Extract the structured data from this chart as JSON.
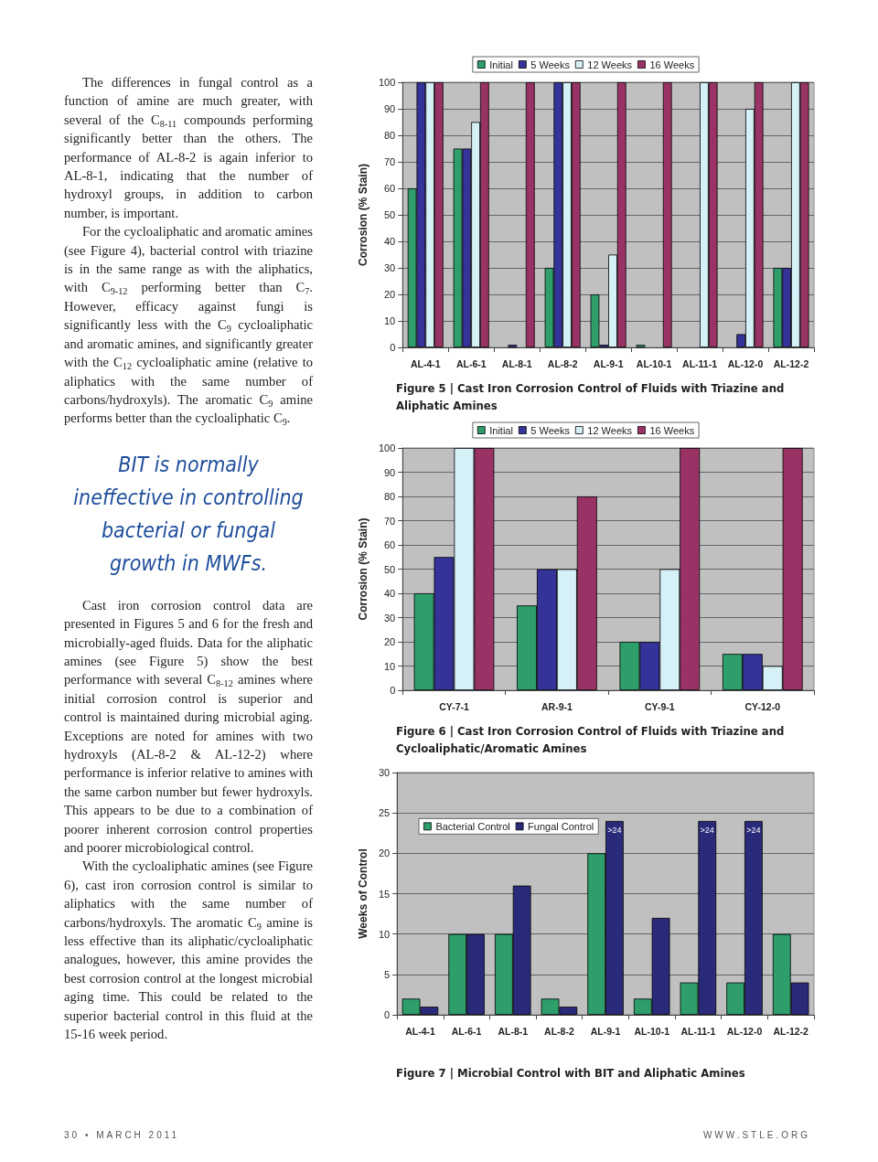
{
  "chart_data": [
    {
      "type": "other",
      "annotations": [
        "The differences in fungal control as a function of amine are much greater, with several of the C$_{8-11}$ compounds performing significantly better than the others. The performance of AL-8-2 is again inferior to AL-8-1, indicating that the number of hydroxyl groups, in addition to carbon number, is important.",
        "For the cycloaliphatic and aromatic amines (see Figure 4), bacterial control with triazine is in the same range as with the aliphatics, with C$_{9-12}$ performing better than C$_{7}$. However, efficacy against fungi is significantly less with the C$_{9}$ cycloaliphatic and aromatic amines, and significantly greater with the C$_{12}$ cycloaliphatic amine (relative to aliphatics with the same number of carbons/hydroxyls). The aromatic C$_{9}$ amine performs better than the cycloaliphatic C$_{9}$.",
        "BIT is normally ineffective in controlling bacterial or fungal growth in MWFs.",
        "Cast iron corrosion control data are presented in Figures 5 and 6 for the fresh and microbially-aged fluids. Data for the aliphatic amines (see Figure 5) show the best performance with several C$_{8-12}$ amines where initial corrosion control is superior and control is maintained during microbial aging. Exceptions are noted for amines with two hydroxyls (AL-8-2 & AL-12-2) where performance is inferior relative to amines with the same carbon number but fewer hydroxyls. This appears to be due to a combination of poorer inherent corrosion control properties and poorer microbiological control.",
        "With the cycloaliphatic amines (see Figure 6), cast iron corrosion control is similar to aliphatics with the same number of carbons/hydroxyls. The aromatic C$_{9}$ amine is less effective than its aliphatic/cycloaliphatic analogues, however, this amine provides the best corrosion control at the longest microbial aging time. This could be related to the superior bacterial control in this fluid at the 15-16 week period.",
        "30 • MARCH 2011",
        "WWW.STLE.ORG"
      ]
    },
    {
      "type": "bar",
      "title": "Figure 5 | Cast Iron Corrosion Control of Fluids with Triazine and Aliphatic Amines",
      "ylabel": "Corrosion (% Stain)",
      "categories": [
        "AL-4-1",
        "AL-6-1",
        "AL-8-1",
        "AL-8-2",
        "AL-9-1",
        "AL-10-1",
        "AL-11-1",
        "AL-12-0",
        "AL-12-2"
      ],
      "series": [
        {
          "name": "Initial",
          "color": "#2e9e6a",
          "values": [
            60,
            75,
            null,
            30,
            20,
            1,
            null,
            null,
            30
          ]
        },
        {
          "name": "5 Weeks",
          "color": "#333399",
          "values": [
            100,
            75,
            1,
            100,
            1,
            null,
            null,
            5,
            30
          ]
        },
        {
          "name": "12 Weeks",
          "color": "#d6f0f8",
          "values": [
            100,
            85,
            null,
            100,
            35,
            null,
            100,
            90,
            100
          ]
        },
        {
          "name": "16 Weeks",
          "color": "#993366",
          "values": [
            100,
            100,
            100,
            100,
            100,
            100,
            100,
            100,
            100
          ]
        }
      ],
      "ylim": [
        0,
        100
      ],
      "yticks": [
        0,
        10,
        20,
        30,
        40,
        50,
        60,
        70,
        80,
        90,
        100
      ],
      "grid": "y",
      "legend": "top"
    },
    {
      "type": "bar",
      "title": "Figure 6 | Cast Iron Corrosion Control of Fluids with Triazine and Cycloaliphatic/Aromatic Amines",
      "ylabel": "Corrosion (% Stain)",
      "categories": [
        "CY-7-1",
        "AR-9-1",
        "CY-9-1",
        "CY-12-0"
      ],
      "series": [
        {
          "name": "Initial",
          "color": "#2e9e6a",
          "values": [
            40,
            35,
            20,
            15
          ]
        },
        {
          "name": "5 Weeks",
          "color": "#333399",
          "values": [
            55,
            50,
            20,
            15
          ]
        },
        {
          "name": "12 Weeks",
          "color": "#d6f0f8",
          "values": [
            100,
            50,
            50,
            10
          ]
        },
        {
          "name": "16 Weeks",
          "color": "#993366",
          "values": [
            100,
            80,
            100,
            100
          ]
        }
      ],
      "ylim": [
        0,
        100
      ],
      "yticks": [
        0,
        10,
        20,
        30,
        40,
        50,
        60,
        70,
        80,
        90,
        100
      ],
      "grid": "y",
      "legend": "top"
    },
    {
      "type": "bar",
      "title": "Figure 7 | Microbial Control with BIT and Aliphatic Amines",
      "ylabel": "Weeks of Control",
      "categories": [
        "AL-4-1",
        "AL-6-1",
        "AL-8-1",
        "AL-8-2",
        "AL-9-1",
        "AL-10-1",
        "AL-11-1",
        "AL-12-0",
        "AL-12-2"
      ],
      "series": [
        {
          "name": "Bacterial Control",
          "color": "#2e9e6a",
          "values": [
            2,
            10,
            10,
            2,
            20,
            2,
            4,
            4,
            10
          ]
        },
        {
          "name": "Fungal Control",
          "color": "#2a2a7a",
          "values": [
            1,
            10,
            16,
            1,
            24,
            12,
            24,
            24,
            4
          ],
          "value_labels": [
            null,
            null,
            null,
            null,
            ">24",
            null,
            ">24",
            ">24",
            null
          ]
        }
      ],
      "ylim": [
        0,
        30
      ],
      "yticks": [
        0,
        5,
        10,
        15,
        20,
        25,
        30
      ],
      "grid": "y",
      "legend": "top left"
    }
  ]
}
